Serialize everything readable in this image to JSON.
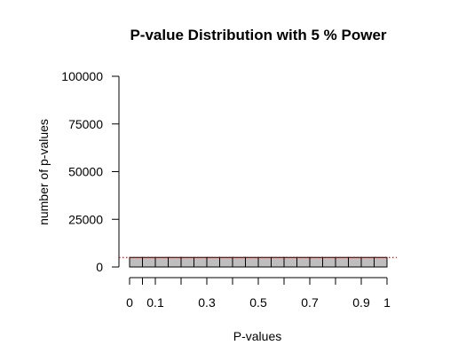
{
  "chart_data": {
    "type": "bar",
    "title": "P-value Distribution with 5 % Power",
    "xlabel": "P-values",
    "ylabel": "number of p-values",
    "xlim": [
      0,
      1
    ],
    "ylim": [
      0,
      100000
    ],
    "bin_width": 0.05,
    "x_ticks": [
      0,
      0.05,
      0.1,
      0.2,
      0.3,
      0.4,
      0.5,
      0.6,
      0.7,
      0.8,
      0.9,
      1
    ],
    "x_tick_labels": [
      {
        "value": 0,
        "label": "0"
      },
      {
        "value": 0.1,
        "label": "0.1"
      },
      {
        "value": 0.3,
        "label": "0.3"
      },
      {
        "value": 0.5,
        "label": "0.5"
      },
      {
        "value": 0.7,
        "label": "0.7"
      },
      {
        "value": 0.9,
        "label": "0.9"
      },
      {
        "value": 1,
        "label": "1"
      }
    ],
    "y_ticks": [
      0,
      25000,
      50000,
      75000,
      100000
    ],
    "y_tick_labels": [
      "0",
      "25000",
      "50000",
      "75000",
      "100000"
    ],
    "bins": [
      {
        "x0": 0.0,
        "x1": 0.05,
        "count": 5000
      },
      {
        "x0": 0.05,
        "x1": 0.1,
        "count": 5000
      },
      {
        "x0": 0.1,
        "x1": 0.15,
        "count": 5000
      },
      {
        "x0": 0.15,
        "x1": 0.2,
        "count": 5000
      },
      {
        "x0": 0.2,
        "x1": 0.25,
        "count": 5000
      },
      {
        "x0": 0.25,
        "x1": 0.3,
        "count": 5000
      },
      {
        "x0": 0.3,
        "x1": 0.35,
        "count": 5000
      },
      {
        "x0": 0.35,
        "x1": 0.4,
        "count": 5000
      },
      {
        "x0": 0.4,
        "x1": 0.45,
        "count": 5000
      },
      {
        "x0": 0.45,
        "x1": 0.5,
        "count": 5000
      },
      {
        "x0": 0.5,
        "x1": 0.55,
        "count": 5000
      },
      {
        "x0": 0.55,
        "x1": 0.6,
        "count": 5000
      },
      {
        "x0": 0.6,
        "x1": 0.65,
        "count": 5000
      },
      {
        "x0": 0.65,
        "x1": 0.7,
        "count": 5000
      },
      {
        "x0": 0.7,
        "x1": 0.75,
        "count": 5000
      },
      {
        "x0": 0.75,
        "x1": 0.8,
        "count": 5000
      },
      {
        "x0": 0.8,
        "x1": 0.85,
        "count": 5000
      },
      {
        "x0": 0.85,
        "x1": 0.9,
        "count": 5000
      },
      {
        "x0": 0.9,
        "x1": 0.95,
        "count": 5000
      },
      {
        "x0": 0.95,
        "x1": 1.0,
        "count": 5000
      }
    ],
    "reference_line": {
      "y": 5000,
      "style": "dotted",
      "color": "#8b0000"
    },
    "bar_fill": "#bebebe",
    "bar_stroke": "#000000",
    "grid": false,
    "legend": "none"
  }
}
